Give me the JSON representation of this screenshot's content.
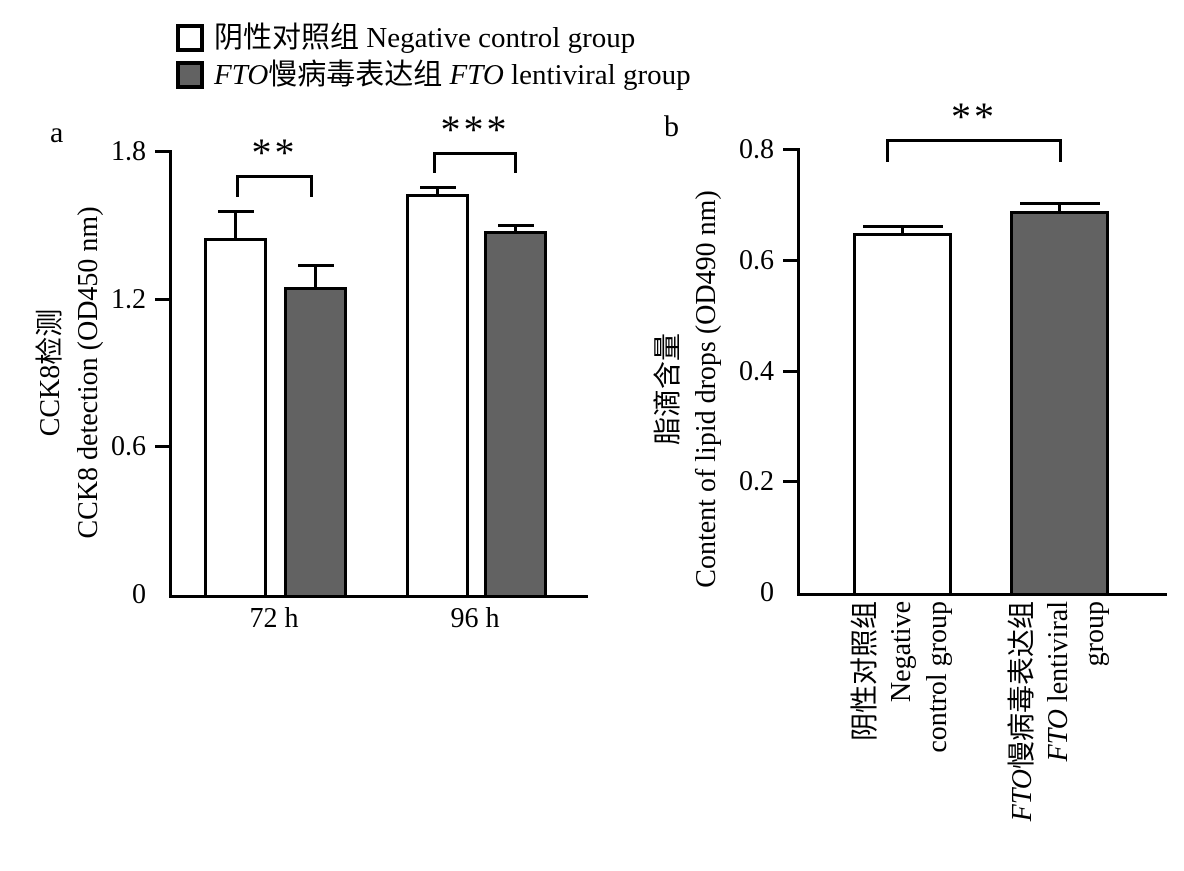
{
  "page": {
    "background": "#ffffff"
  },
  "legend": {
    "position": "top-left",
    "items": [
      {
        "swatch_name": "negative-control-swatch",
        "swatch_color": "#ffffff",
        "parts": [
          {
            "t": "阴性对照组 Negative control group"
          }
        ]
      },
      {
        "swatch_name": "fto-lentiviral-swatch",
        "swatch_color": "#626262",
        "parts": [
          {
            "t": "FTO",
            "i": true
          },
          {
            "t": "慢病毒表达组 "
          },
          {
            "t": "FTO",
            "i": true
          },
          {
            "t": " lentiviral group"
          }
        ]
      }
    ]
  },
  "chart_data": [
    {
      "type": "bar",
      "panel_label": "a",
      "title": "",
      "xlabel": "",
      "ylabel_lines": [
        "CCK8检测",
        "CCK8 detection (OD450 nm)"
      ],
      "categories": [
        "72 h",
        "96 h"
      ],
      "series": [
        {
          "name": "Negative control group",
          "fill": "#ffffff",
          "values": [
            1.45,
            1.63
          ],
          "errors": [
            0.1,
            0.02
          ]
        },
        {
          "name": "FTO lentiviral group",
          "fill": "#626262",
          "values": [
            1.25,
            1.48
          ],
          "errors": [
            0.08,
            0.015
          ]
        }
      ],
      "ylim": [
        0,
        1.8
      ],
      "yticks": [
        0,
        0.6,
        1.2,
        1.8
      ],
      "grid": false,
      "error_bars": "upper only",
      "significance": [
        {
          "category": "72 h",
          "between": [
            "Negative control group",
            "FTO lentiviral group"
          ],
          "label": "**"
        },
        {
          "category": "96 h",
          "between": [
            "Negative control group",
            "FTO lentiviral group"
          ],
          "label": "***"
        }
      ]
    },
    {
      "type": "bar",
      "panel_label": "b",
      "title": "",
      "xlabel": "",
      "ylabel_lines": [
        "脂滴含量",
        "Content of lipid drops (OD490 nm)"
      ],
      "categories": [
        {
          "name": "Negative control group",
          "label_lines": [
            [
              {
                "t": "阴性对照组"
              }
            ],
            [
              {
                "t": "Negative"
              }
            ],
            [
              {
                "t": "control group"
              }
            ]
          ]
        },
        {
          "name": "FTO lentiviral group",
          "label_lines": [
            [
              {
                "t": "FTO",
                "i": true
              },
              {
                "t": "慢病毒表达组"
              }
            ],
            [
              {
                "t": "FTO",
                "i": true
              },
              {
                "t": " lentiviral"
              }
            ],
            [
              {
                "t": "group"
              }
            ]
          ]
        }
      ],
      "series": [
        {
          "name": "Content of lipid drops",
          "fills": [
            "#ffffff",
            "#626262"
          ],
          "values": [
            0.65,
            0.69
          ],
          "errors": [
            0.009,
            0.01
          ]
        }
      ],
      "ylim": [
        0,
        0.8
      ],
      "yticks": [
        0,
        0.2,
        0.4,
        0.6,
        0.8
      ],
      "grid": false,
      "error_bars": "upper only",
      "significance": [
        {
          "between": [
            "Negative control group",
            "FTO lentiviral group"
          ],
          "label": "**"
        }
      ]
    }
  ]
}
